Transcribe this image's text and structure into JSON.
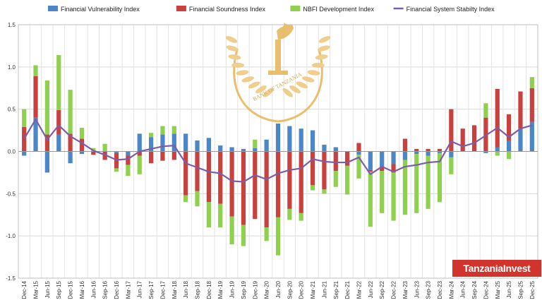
{
  "legend": [
    {
      "name": "Financial Vulnerability Index",
      "color": "#4a86c8"
    },
    {
      "name": "Financial Soundness Index",
      "color": "#c8413f"
    },
    {
      "name": "NBFI Development Index",
      "color": "#8fd14f"
    },
    {
      "name": "Financial System Stabilty Index",
      "color": "#7b5ea7"
    }
  ],
  "watermark": {
    "text": "BANK OF TANZANIA",
    "color": "#e3b75a"
  },
  "brand": {
    "text": "TanzaniaInvest",
    "color": "#d0342c"
  },
  "chart_data": {
    "type": "bar",
    "stacked": true,
    "ylim": [
      -1.5,
      1.5
    ],
    "yticks": [
      "1.5",
      "1.0",
      "0.5",
      "0.0",
      "-0.5",
      "-1.0",
      "-1.5"
    ],
    "ytick_values": [
      1.5,
      1.0,
      0.5,
      0.0,
      -0.5,
      -1.0,
      -1.5
    ],
    "grid": true,
    "legend_position": "top",
    "categories": [
      "Dec-14",
      "Mar-15",
      "Jun-15",
      "Sep-15",
      "Dec-15",
      "Mar-16",
      "Jun-16",
      "Sep-16",
      "Dec-16",
      "Mar-17",
      "Jun-17",
      "Sep-17",
      "Dec-17",
      "Mar-18",
      "Jun-18",
      "Sep-18",
      "Dec-18",
      "Mar-19",
      "Jun-19",
      "Sep-19",
      "Dec-19",
      "Mar-20",
      "Jun-20",
      "Sep-20",
      "Dec-20",
      "Mar-21",
      "Jun-21",
      "Sep-21",
      "Dec-21",
      "Mar-22",
      "Jun-22",
      "Sep-22",
      "Dec-22",
      "Mar-23",
      "Jun-23",
      "Sep-23",
      "Dec-23",
      "Mar-24",
      "Jun-24",
      "Sep-24",
      "Dec-24",
      "Mar-25",
      "Jun-25",
      "Sep-25",
      "Dec-25"
    ],
    "series": [
      {
        "name": "Financial Vulnerability Index",
        "type": "bar",
        "values": [
          -0.05,
          0.4,
          -0.25,
          0.2,
          -0.14,
          -0.03,
          0.0,
          0.0,
          -0.02,
          -0.05,
          0.21,
          0.17,
          0.2,
          0.21,
          0.21,
          0.13,
          0.16,
          0.07,
          0.05,
          0.03,
          0.04,
          0.14,
          0.33,
          0.3,
          0.27,
          0.25,
          0.08,
          0.05,
          0.0,
          -0.04,
          -0.22,
          -0.18,
          -0.15,
          -0.1,
          -0.03,
          -0.05,
          -0.02,
          -0.07,
          0.0,
          0.0,
          -0.02,
          0.05,
          0.13,
          0.27,
          0.35
        ]
      },
      {
        "name": "Financial Soundness Index",
        "type": "bar",
        "values": [
          0.29,
          0.49,
          0.2,
          0.29,
          0.21,
          0.15,
          -0.04,
          -0.1,
          -0.18,
          -0.11,
          -0.05,
          -0.14,
          -0.11,
          -0.1,
          -0.52,
          -0.47,
          -0.6,
          -0.62,
          -0.77,
          -0.87,
          -0.8,
          -0.9,
          -0.78,
          -0.68,
          -0.73,
          -0.4,
          -0.45,
          -0.23,
          -0.17,
          0.1,
          -0.02,
          -0.05,
          -0.1,
          0.15,
          0.03,
          0.03,
          0.03,
          0.5,
          0.27,
          0.31,
          0.4,
          0.69,
          0.31,
          0.44,
          0.4
        ]
      },
      {
        "name": "NBFI Development Index",
        "type": "bar",
        "values": [
          0.21,
          0.13,
          0.64,
          0.65,
          0.52,
          0.13,
          0.04,
          0.09,
          -0.04,
          -0.13,
          -0.22,
          0.05,
          0.1,
          0.09,
          -0.08,
          -0.18,
          -0.3,
          -0.28,
          -0.33,
          -0.25,
          0.1,
          -0.16,
          -0.45,
          -0.13,
          -0.09,
          -0.06,
          -0.05,
          -0.19,
          -0.34,
          -0.28,
          -0.65,
          -0.5,
          -0.57,
          -0.65,
          -0.7,
          -0.63,
          -0.58,
          -0.2,
          0.0,
          0.0,
          0.17,
          -0.05,
          -0.09,
          0.0,
          0.13
        ]
      },
      {
        "name": "Financial System Stabilty Index",
        "type": "line",
        "values": [
          0.15,
          0.38,
          0.14,
          0.31,
          0.18,
          0.1,
          0.01,
          -0.04,
          -0.1,
          -0.09,
          0.0,
          0.03,
          0.06,
          0.07,
          -0.14,
          -0.19,
          -0.24,
          -0.26,
          -0.35,
          -0.36,
          -0.28,
          -0.33,
          -0.26,
          -0.22,
          -0.2,
          -0.09,
          -0.12,
          -0.13,
          -0.13,
          -0.07,
          -0.27,
          -0.18,
          -0.24,
          -0.18,
          -0.16,
          -0.13,
          -0.12,
          0.12,
          0.06,
          0.1,
          0.19,
          0.28,
          0.17,
          0.27,
          0.31
        ]
      }
    ]
  }
}
